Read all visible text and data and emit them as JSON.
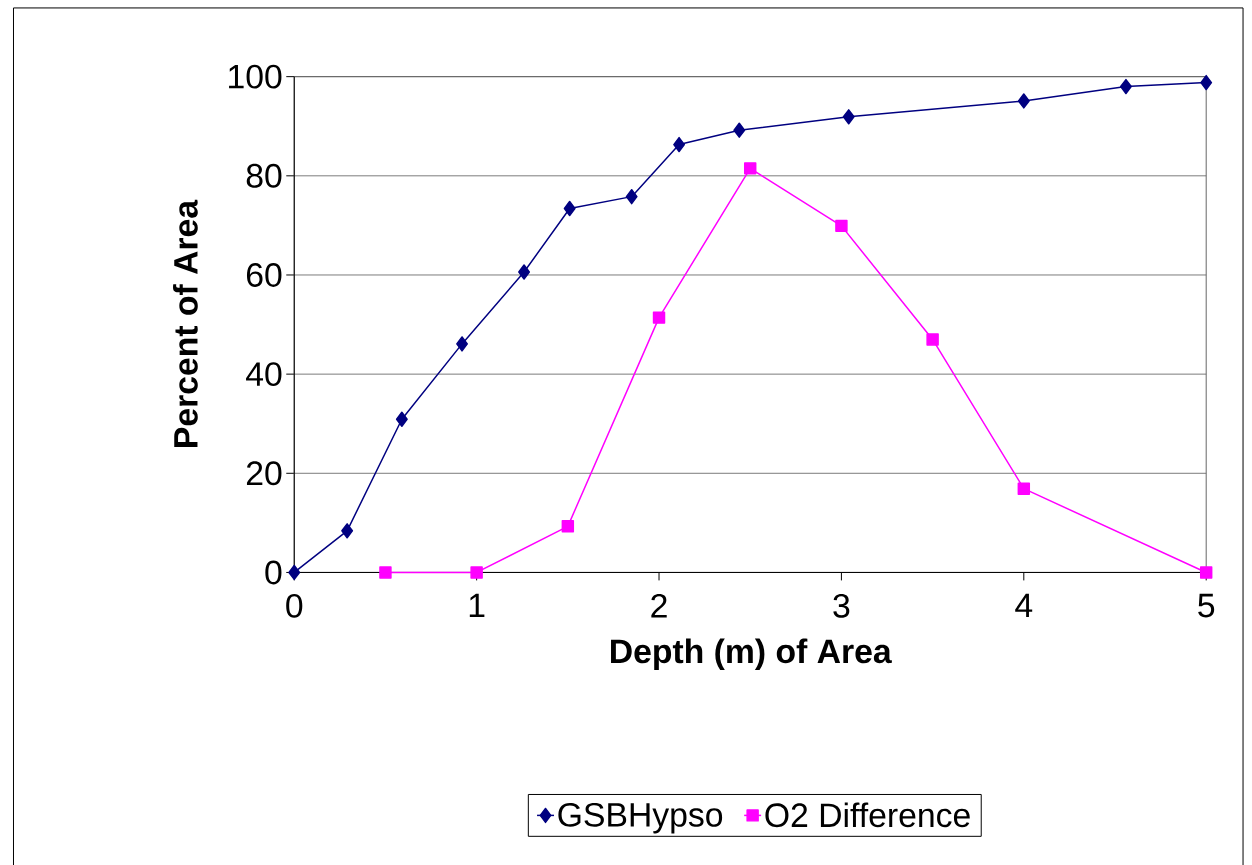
{
  "chart_data": {
    "type": "line",
    "xlabel": "Depth (m) of Area",
    "ylabel": "Percent of Area",
    "xlim": [
      0,
      5
    ],
    "xticks": [
      0,
      1,
      2,
      3,
      4,
      5
    ],
    "ylim": [
      0,
      100
    ],
    "yticks": [
      0,
      20,
      40,
      60,
      80,
      100
    ],
    "grid": "y",
    "legend": "bottom",
    "series": [
      {
        "name": "GSBHypso",
        "color": "#000080",
        "marker": "diamond",
        "x": [
          0,
          0.29,
          0.59,
          0.92,
          1.26,
          1.51,
          1.85,
          2.11,
          2.44,
          3.04,
          4.0,
          4.56,
          5.0
        ],
        "values": [
          0,
          8.4,
          30.9,
          46.1,
          60.6,
          73.4,
          75.8,
          86.3,
          89.2,
          91.9,
          95.1,
          98.0,
          98.8
        ]
      },
      {
        "name": "O2 Difference",
        "color": "#ff00ff",
        "marker": "square",
        "x": [
          0.5,
          1.0,
          1.5,
          2.0,
          2.5,
          3.0,
          3.5,
          4.0,
          5.0
        ],
        "values": [
          0,
          0,
          9.3,
          51.4,
          81.5,
          69.9,
          47.0,
          16.9,
          0
        ]
      }
    ]
  }
}
